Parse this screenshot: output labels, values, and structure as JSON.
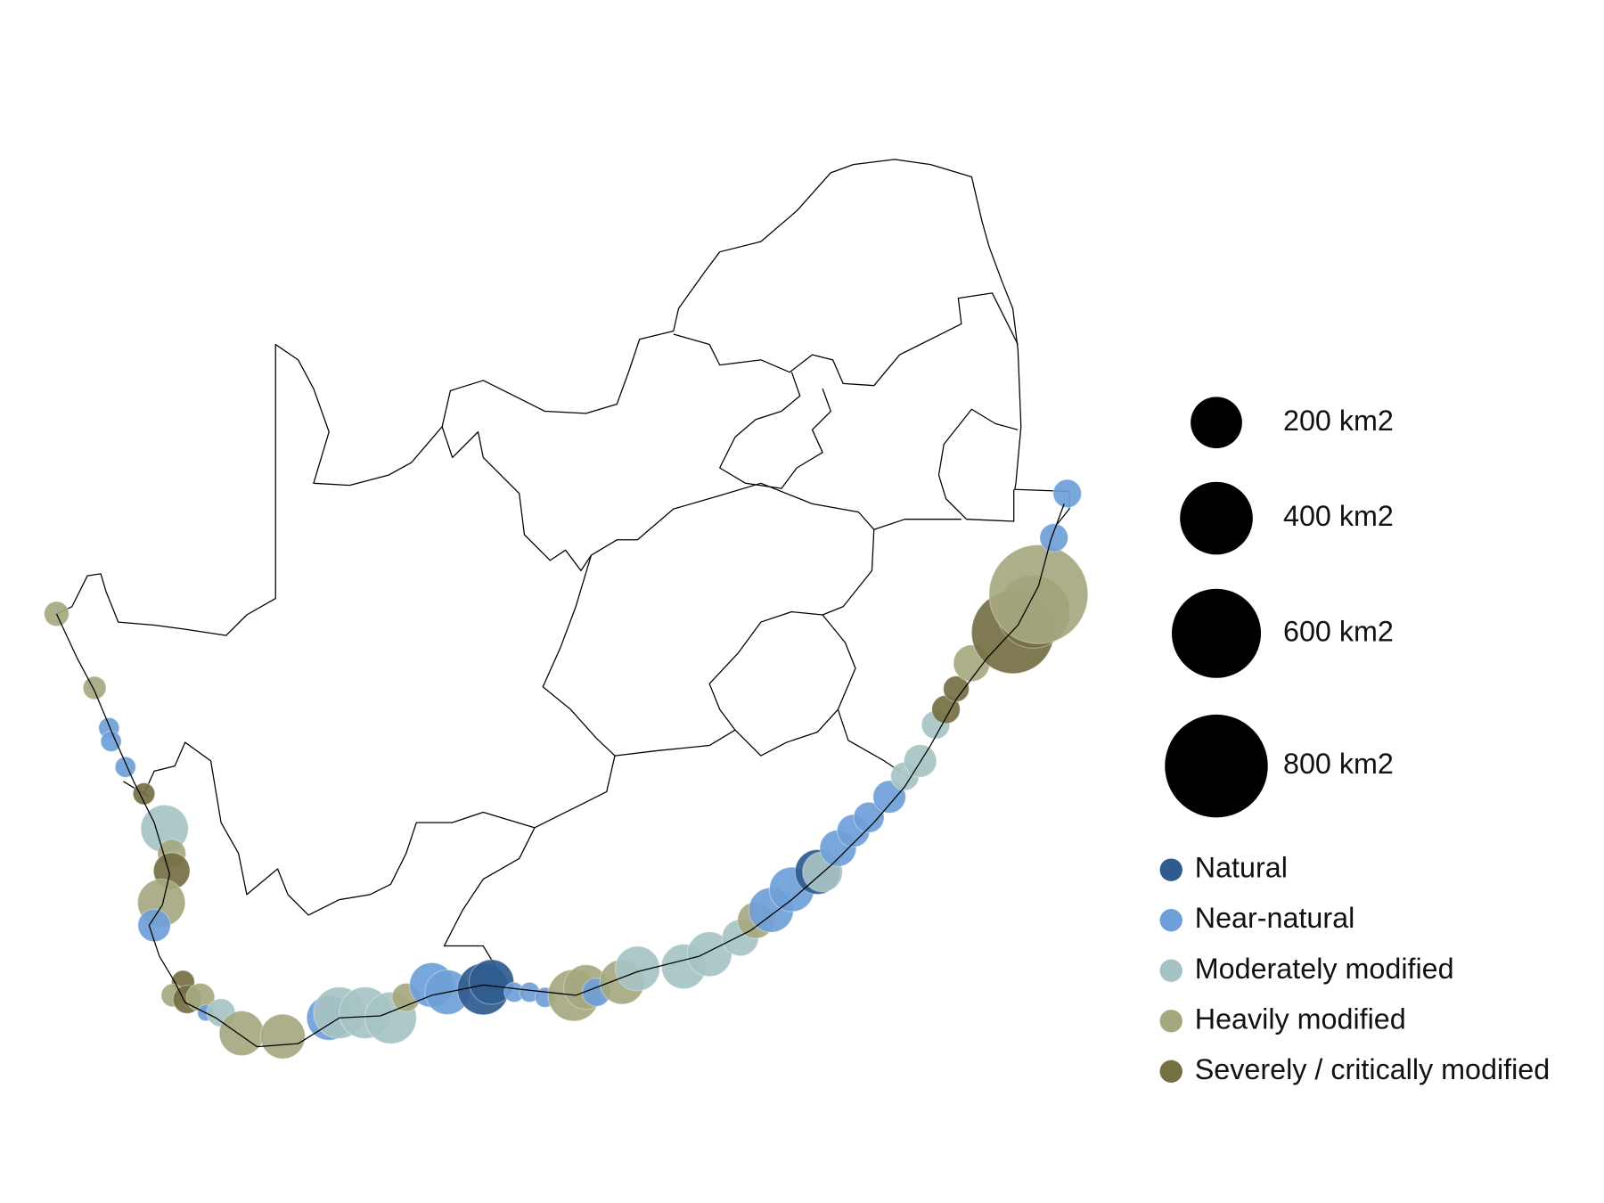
{
  "size_legend": [
    {
      "value": 200,
      "label": "200 km2"
    },
    {
      "value": 400,
      "label": "400 km2"
    },
    {
      "value": 600,
      "label": "600 km2"
    },
    {
      "value": 800,
      "label": "800 km2"
    }
  ],
  "categories": [
    {
      "name": "Natural",
      "color": "#2f5b8f"
    },
    {
      "name": "Near-natural",
      "color": "#6f9fd8"
    },
    {
      "name": "Moderately modified",
      "color": "#a6c3c3"
    },
    {
      "name": "Heavily modified",
      "color": "#a5a87f"
    },
    {
      "name": "Severely / critically modified",
      "color": "#756f44"
    }
  ],
  "estuaries": [
    {
      "category": 3,
      "area": 46
    },
    {
      "category": 3,
      "area": 40
    },
    {
      "category": 1,
      "area": 32
    },
    {
      "category": 1,
      "area": 32
    },
    {
      "category": 1,
      "area": 32
    },
    {
      "category": 4,
      "area": 36
    },
    {
      "category": 2,
      "area": 170
    },
    {
      "category": 3,
      "area": 60
    },
    {
      "category": 4,
      "area": 100
    },
    {
      "category": 3,
      "area": 170
    },
    {
      "category": 1,
      "area": 80
    },
    {
      "category": 4,
      "area": 40
    },
    {
      "category": 3,
      "area": 40
    },
    {
      "category": 4,
      "area": 60
    },
    {
      "category": 3,
      "area": 60
    },
    {
      "category": 1,
      "area": 20
    },
    {
      "category": 2,
      "area": 60
    },
    {
      "category": 3,
      "area": 150
    },
    {
      "category": 3,
      "area": 150
    },
    {
      "category": 1,
      "area": 150
    },
    {
      "category": 2,
      "area": 200
    },
    {
      "category": 2,
      "area": 200
    },
    {
      "category": 2,
      "area": 200
    },
    {
      "category": 3,
      "area": 60
    },
    {
      "category": 1,
      "area": 150
    },
    {
      "category": 1,
      "area": 150
    },
    {
      "category": 0,
      "area": 200
    },
    {
      "category": 0,
      "area": 150
    },
    {
      "category": 1,
      "area": 30
    },
    {
      "category": 1,
      "area": 30
    },
    {
      "category": 1,
      "area": 30
    },
    {
      "category": 3,
      "area": 200
    },
    {
      "category": 3,
      "area": 150
    },
    {
      "category": 1,
      "area": 60
    },
    {
      "category": 3,
      "area": 150
    },
    {
      "category": 2,
      "area": 150
    },
    {
      "category": 2,
      "area": 150
    },
    {
      "category": 2,
      "area": 150
    },
    {
      "category": 2,
      "area": 100
    },
    {
      "category": 3,
      "area": 100
    },
    {
      "category": 1,
      "area": 150
    },
    {
      "category": 1,
      "area": 150
    },
    {
      "category": 0,
      "area": 150
    },
    {
      "category": 2,
      "area": 120
    },
    {
      "category": 1,
      "area": 100
    },
    {
      "category": 1,
      "area": 80
    },
    {
      "category": 1,
      "area": 70
    },
    {
      "category": 1,
      "area": 80
    },
    {
      "category": 2,
      "area": 60
    },
    {
      "category": 2,
      "area": 80
    },
    {
      "category": 2,
      "area": 60
    },
    {
      "category": 4,
      "area": 60
    },
    {
      "category": 4,
      "area": 50
    },
    {
      "category": 3,
      "area": 100
    },
    {
      "category": 4,
      "area": 512
    },
    {
      "category": 4,
      "area": 400
    },
    {
      "category": 3,
      "area": 737
    },
    {
      "category": 1,
      "area": 60
    },
    {
      "category": 1,
      "area": 60
    }
  ]
}
